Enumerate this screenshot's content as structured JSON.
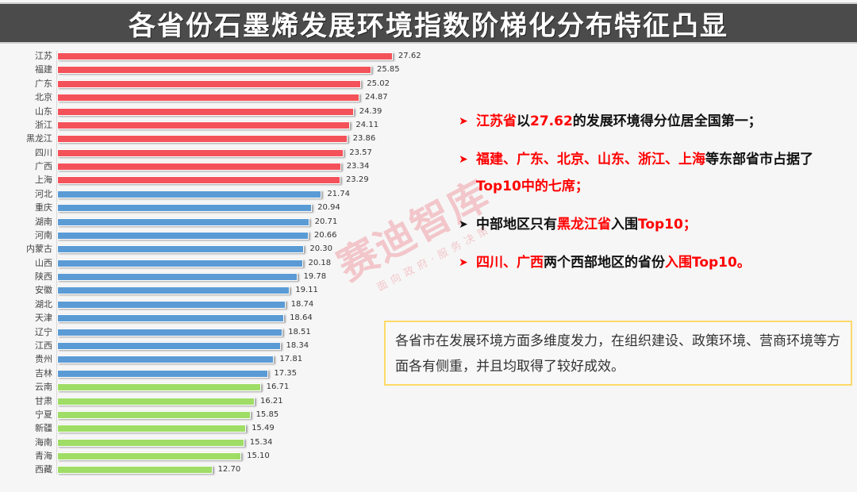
{
  "header": {
    "title": "各省份石墨烯发展环境指数阶梯化分布特征凸显"
  },
  "chart_data": {
    "type": "bar",
    "orientation": "horizontal",
    "title": "各省份石墨烯发展环境指数阶梯化分布特征凸显",
    "xlabel": "",
    "ylabel": "",
    "categories": [
      "江苏",
      "福建",
      "广东",
      "北京",
      "山东",
      "浙江",
      "黑龙江",
      "四川",
      "广西",
      "上海",
      "河北",
      "重庆",
      "湖南",
      "河南",
      "内蒙古",
      "山西",
      "陕西",
      "安徽",
      "湖北",
      "天津",
      "辽宁",
      "江西",
      "贵州",
      "吉林",
      "云南",
      "甘肃",
      "宁夏",
      "新疆",
      "海南",
      "青海",
      "西藏"
    ],
    "values": [
      27.62,
      25.85,
      25.02,
      24.87,
      24.39,
      24.11,
      23.86,
      23.57,
      23.34,
      23.29,
      21.74,
      20.94,
      20.71,
      20.66,
      20.3,
      20.18,
      19.78,
      19.11,
      18.74,
      18.64,
      18.51,
      18.34,
      17.81,
      17.35,
      16.71,
      16.21,
      15.85,
      15.49,
      15.34,
      15.1,
      12.7
    ],
    "value_labels": [
      "27.62",
      "25.85",
      "25.02",
      "24.87",
      "24.39",
      "24.11",
      "23.86",
      "23.57",
      "23.34",
      "23.29",
      "21.74",
      "20.94",
      "20.71",
      "20.66",
      "20.30",
      "20.18",
      "19.78",
      "19.11",
      "18.74",
      "18.64",
      "18.51",
      "18.34",
      "17.81",
      "17.35",
      "16.71",
      "16.21",
      "15.85",
      "15.49",
      "15.34",
      "15.10",
      "12.70"
    ],
    "tiers": [
      {
        "name": "top",
        "color": "#f4525a",
        "range": [
          0,
          9
        ]
      },
      {
        "name": "middle",
        "color": "#5b9bd5",
        "range": [
          10,
          23
        ]
      },
      {
        "name": "bottom",
        "color": "#9fdd66",
        "range": [
          24,
          30
        ]
      }
    ],
    "grid": false,
    "legend": null,
    "xlim": [
      0,
      30
    ]
  },
  "bullets": [
    {
      "segments": [
        {
          "t": "江苏省",
          "red": true
        },
        {
          "t": "以",
          "red": false
        },
        {
          "t": "27.62",
          "red": true
        },
        {
          "t": "的发展环境得分位居全国第一；",
          "red": false
        }
      ],
      "arrow_color": "#ff0000"
    },
    {
      "segments": [
        {
          "t": "福建、广东、北京、山东、浙江、上海",
          "red": true
        },
        {
          "t": "等东部省市占据了",
          "red": false
        },
        {
          "t": "Top10中的七席；",
          "red": true
        }
      ],
      "arrow_color": "#ff0000"
    },
    {
      "segments": [
        {
          "t": "中部地区只有",
          "red": false
        },
        {
          "t": "黑龙江省",
          "red": true
        },
        {
          "t": "入围",
          "red": false
        },
        {
          "t": "Top10；",
          "red": true
        }
      ],
      "arrow_color": "#111111"
    },
    {
      "segments": [
        {
          "t": "四川、广西",
          "red": true
        },
        {
          "t": "两个西部地区的省份",
          "red": false
        },
        {
          "t": "入围Top10。",
          "red": true
        }
      ],
      "arrow_color": "#ff0000"
    }
  ],
  "note": {
    "text": "各省市在发展环境方面多维度发力，在组织建设、政策环境、营商环境等方面各有侧重，并且均取得了较好成效。"
  },
  "watermark": {
    "main": "赛迪智库",
    "sub": "面向政府·服务决策"
  },
  "icons": {
    "bullet": "arrowhead-icon"
  }
}
